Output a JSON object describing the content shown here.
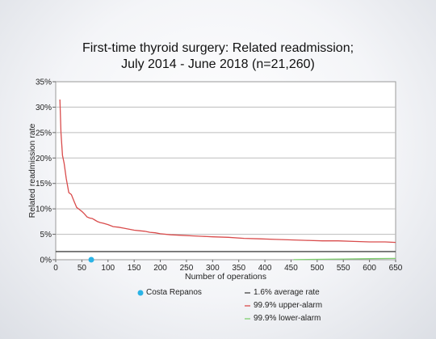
{
  "chart_data": {
    "type": "line",
    "title": "First-time thyroid surgery: Related readmission;",
    "subtitle": "July 2014 - June 2018 (n=21,260)",
    "xlabel": "Number of operations",
    "ylabel": "Related readmission rate",
    "xlim": [
      0,
      650
    ],
    "ylim": [
      0,
      35
    ],
    "x_ticks": [
      "0",
      "50",
      "100",
      "150",
      "200",
      "250",
      "300",
      "350",
      "400",
      "450",
      "500",
      "550",
      "600",
      "650"
    ],
    "y_ticks": [
      "0%",
      "5%",
      "10%",
      "15%",
      "20%",
      "25%",
      "30%",
      "35%"
    ],
    "grid": true,
    "average_rate": 1.6,
    "series": [
      {
        "name": "99.9% upper-alarm",
        "color": "#d94c4c",
        "x": [
          8,
          10,
          13,
          16,
          20,
          25,
          30,
          35,
          40,
          45,
          50,
          55,
          60,
          65,
          70,
          75,
          80,
          85,
          90,
          100,
          110,
          120,
          130,
          140,
          150,
          160,
          170,
          180,
          190,
          200,
          220,
          240,
          260,
          280,
          300,
          330,
          360,
          390,
          420,
          450,
          480,
          510,
          540,
          570,
          600,
          630,
          650
        ],
        "y": [
          31.5,
          25,
          20.5,
          19,
          16,
          13.2,
          12.8,
          11.5,
          10.3,
          9.9,
          9.5,
          9,
          8.4,
          8.2,
          8.1,
          7.8,
          7.5,
          7.3,
          7.2,
          6.9,
          6.5,
          6.4,
          6.2,
          6.0,
          5.8,
          5.7,
          5.6,
          5.4,
          5.3,
          5.1,
          4.9,
          4.8,
          4.7,
          4.6,
          4.5,
          4.4,
          4.2,
          4.1,
          4.0,
          3.9,
          3.8,
          3.7,
          3.7,
          3.6,
          3.5,
          3.5,
          3.4
        ]
      },
      {
        "name": "99.9% lower-alarm",
        "color": "#7fcf6f",
        "x": [
          455,
          500,
          550,
          600,
          650
        ],
        "y": [
          0.02,
          0.08,
          0.14,
          0.2,
          0.26
        ]
      }
    ],
    "average_line": {
      "name": "1.6% average rate",
      "color": "#444444",
      "value": 1.6
    },
    "highlight_point": {
      "name": "Costa Repanos",
      "color": "#2ab3e6",
      "x": 68,
      "y": 0
    }
  },
  "legend": {
    "highlight": "Costa Repanos",
    "average": "1.6% average rate",
    "upper": "99.9% upper-alarm",
    "lower": "99.9% lower-alarm"
  }
}
